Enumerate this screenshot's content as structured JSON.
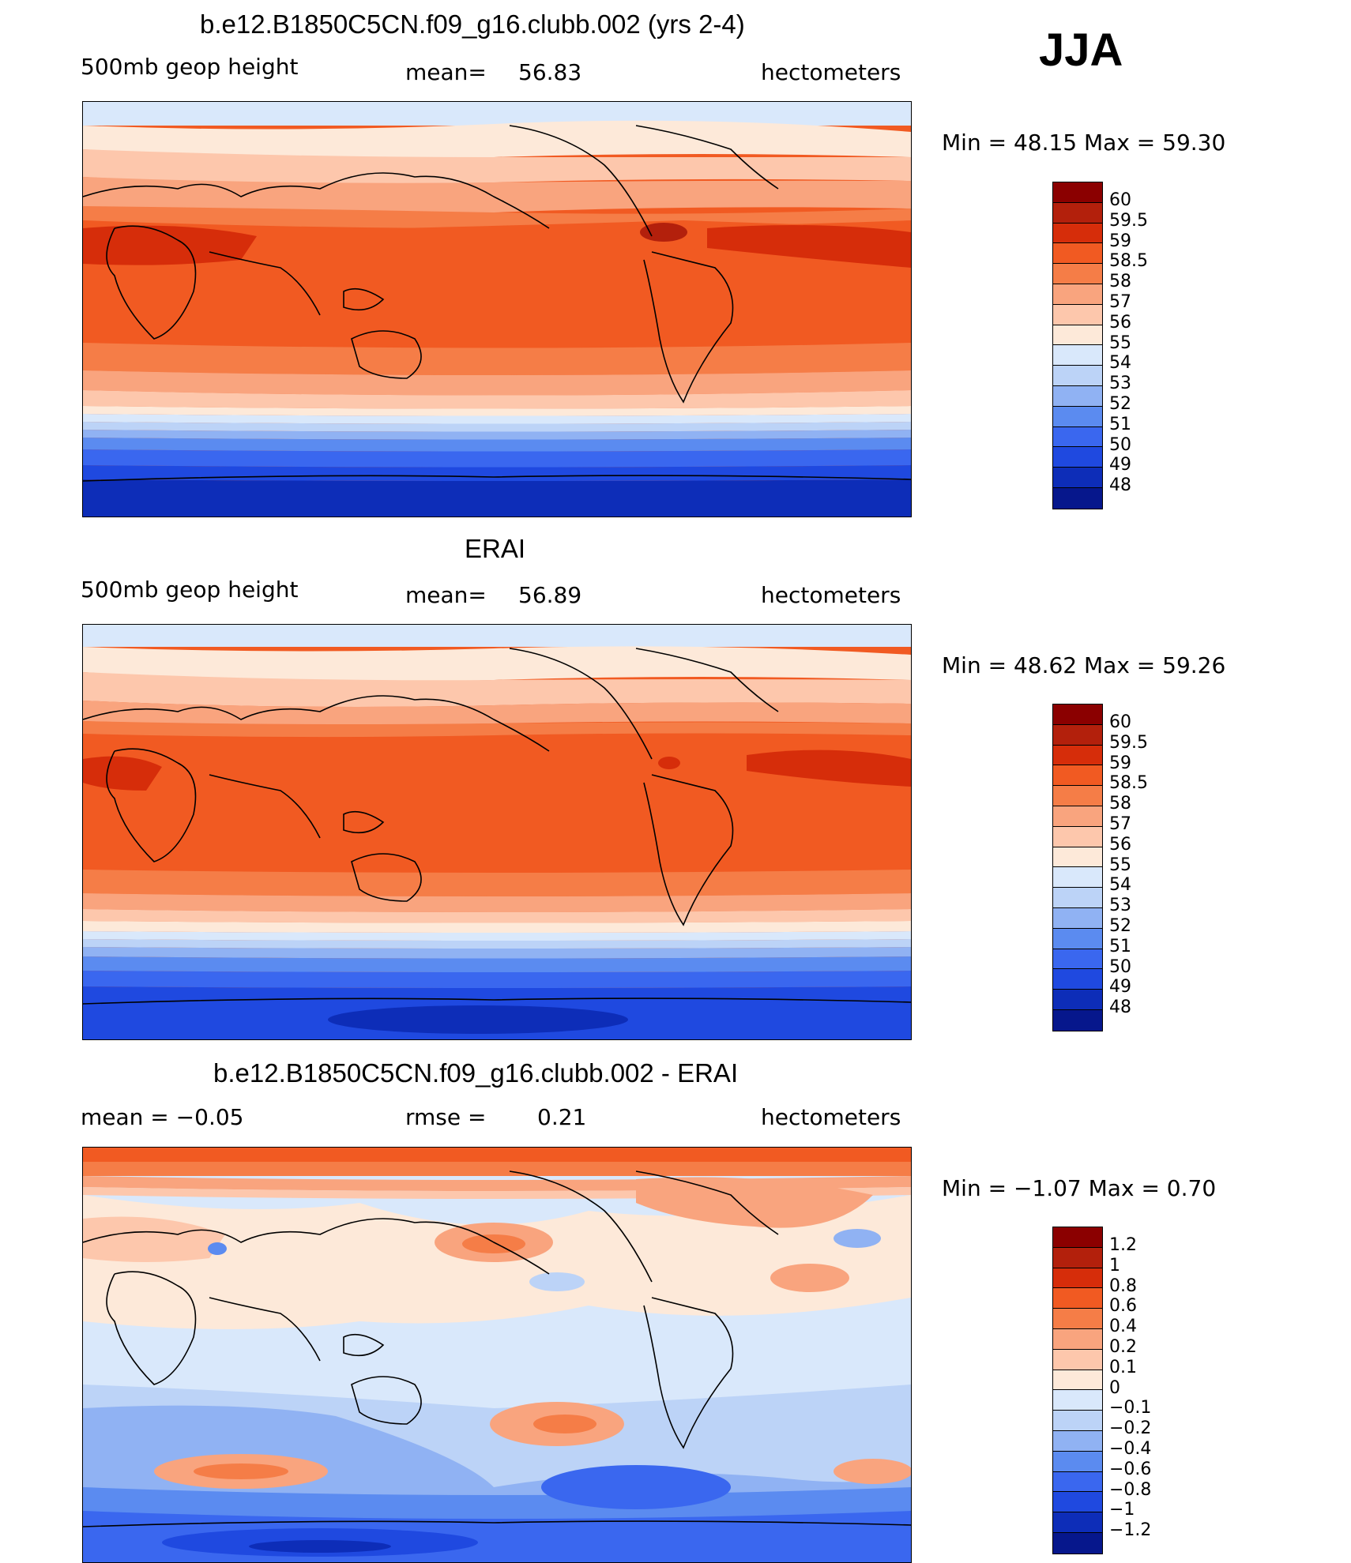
{
  "season": "JJA",
  "panels": [
    {
      "title": "b.e12.B1850C5CN.f09_g16.clubb.002 (yrs 2-4)",
      "variable": "500mb geop height",
      "stat_label": "mean=",
      "stat_value": "56.83",
      "units": "hectometers",
      "minmax": "Min =   48.15  Max =   59.30",
      "levels": [
        "60",
        "59.5",
        "59",
        "58.5",
        "58",
        "57",
        "56",
        "55",
        "54",
        "53",
        "52",
        "51",
        "50",
        "49",
        "48"
      ],
      "colors": [
        "#8b0000",
        "#b3200c",
        "#d62d0a",
        "#f15a22",
        "#f57d47",
        "#f9a47e",
        "#fdc7ac",
        "#fde9d9",
        "#d9e8fb",
        "#bcd3f7",
        "#90b2f3",
        "#5b8bf0",
        "#3a67ef",
        "#1f49e0",
        "#0d2db8",
        "#06178c"
      ]
    },
    {
      "title": "ERAI",
      "variable": "500mb geop height",
      "stat_label": "mean=",
      "stat_value": "56.89",
      "units": "hectometers",
      "minmax": "Min =   48.62  Max =   59.26",
      "levels": [
        "60",
        "59.5",
        "59",
        "58.5",
        "58",
        "57",
        "56",
        "55",
        "54",
        "53",
        "52",
        "51",
        "50",
        "49",
        "48"
      ],
      "colors": [
        "#8b0000",
        "#b3200c",
        "#d62d0a",
        "#f15a22",
        "#f57d47",
        "#f9a47e",
        "#fdc7ac",
        "#fde9d9",
        "#d9e8fb",
        "#bcd3f7",
        "#90b2f3",
        "#5b8bf0",
        "#3a67ef",
        "#1f49e0",
        "#0d2db8",
        "#06178c"
      ]
    },
    {
      "title": "b.e12.B1850C5CN.f09_g16.clubb.002 - ERAI",
      "variable": "mean =    −0.05",
      "stat_label": "rmse =",
      "stat_value": "0.21",
      "units": "hectometers",
      "minmax": "Min =   −1.07  Max =     0.70",
      "levels": [
        "1.2",
        "1",
        "0.8",
        "0.6",
        "0.4",
        "0.2",
        "0.1",
        "0",
        "−0.1",
        "−0.2",
        "−0.4",
        "−0.6",
        "−0.8",
        "−1",
        "−1.2"
      ],
      "colors": [
        "#8b0000",
        "#b3200c",
        "#d62d0a",
        "#f15a22",
        "#f57d47",
        "#f9a47e",
        "#fdc7ac",
        "#fde9d9",
        "#d9e8fb",
        "#bcd3f7",
        "#90b2f3",
        "#5b8bf0",
        "#3a67ef",
        "#1f49e0",
        "#0d2db8",
        "#06178c"
      ]
    }
  ]
}
